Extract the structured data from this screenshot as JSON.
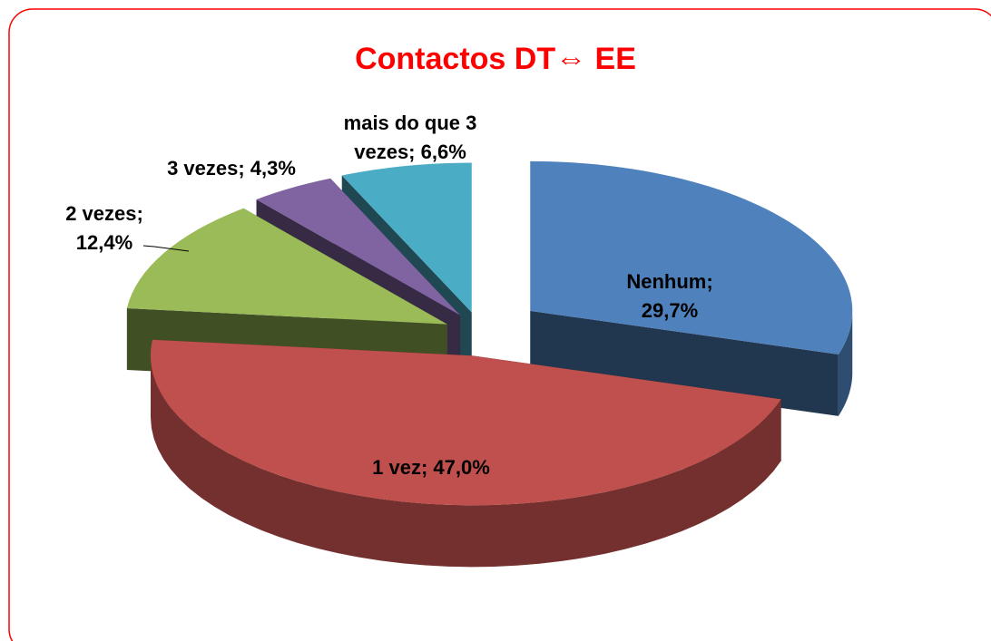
{
  "chart_data": {
    "type": "pie",
    "title": "Contactos DT⇔ EE",
    "values": [
      29.7,
      47.0,
      12.4,
      4.3,
      6.6
    ],
    "value_labels": [
      "Nenhum; 29,7%",
      "1 vez; 47,0%",
      "2 vezes; 12,4%",
      "3 vezes; 4,3%",
      "mais do que 3 vezes; 6,6%"
    ],
    "colors": [
      "#4f81bd",
      "#c0504d",
      "#9bbb59",
      "#8064a2",
      "#4bacc6"
    ]
  }
}
